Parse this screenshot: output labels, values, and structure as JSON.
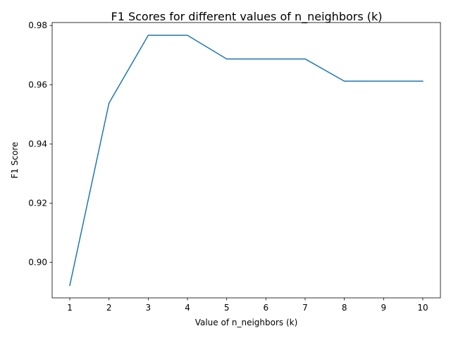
{
  "chart_data": {
    "type": "line",
    "title": "F1 Scores for different values of n_neighbors (k)",
    "xlabel": "Value of n_neighbors (k)",
    "ylabel": "F1 Score",
    "x": [
      1,
      2,
      3,
      4,
      5,
      6,
      7,
      8,
      9,
      10
    ],
    "series": [
      {
        "values": [
          0.8922,
          0.9538,
          0.9767,
          0.9767,
          0.9687,
          0.9687,
          0.9687,
          0.9612,
          0.9612,
          0.9612
        ],
        "color": "#1f77b4"
      }
    ],
    "xlim": [
      0.55,
      10.45
    ],
    "ylim": [
      0.888,
      0.981
    ],
    "xticks": [
      1,
      2,
      3,
      4,
      5,
      6,
      7,
      8,
      9,
      10
    ],
    "yticks": [
      0.9,
      0.92,
      0.94,
      0.96,
      0.98
    ],
    "ytick_labels": [
      "0.90",
      "0.92",
      "0.94",
      "0.96",
      "0.98"
    ],
    "grid": false,
    "legend": "none"
  }
}
